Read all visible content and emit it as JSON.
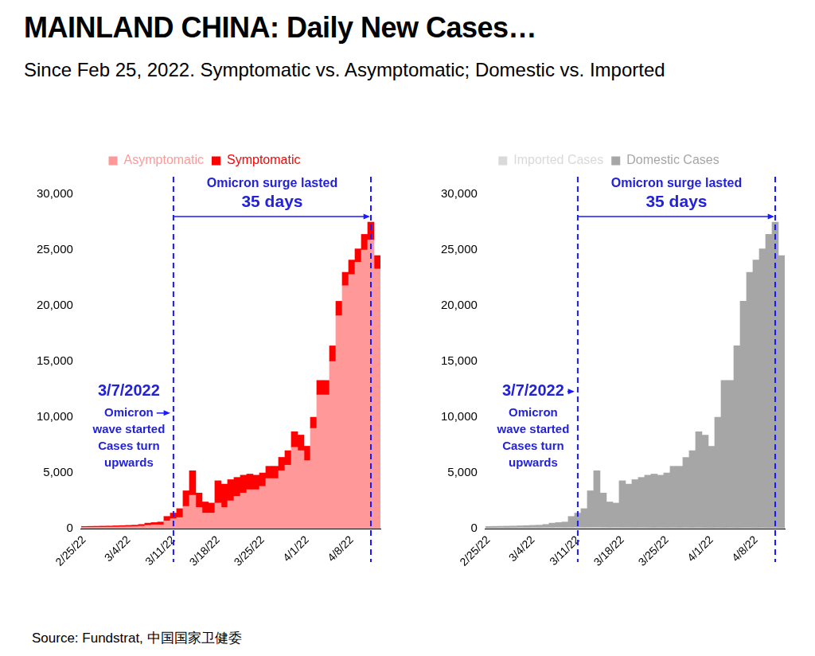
{
  "title": "MAINLAND CHINA: Daily New Cases…",
  "subtitle": "Since Feb 25, 2022. Symptomatic vs. Asymptomatic; Domestic vs. Imported",
  "source": "Source: Fundstrat, 中国国家卫健委",
  "chart_data": [
    {
      "type": "bar",
      "stacked": true,
      "grid": false,
      "legend": "top",
      "categories": [
        "2/25/22",
        null,
        null,
        null,
        null,
        null,
        null,
        "3/4/22",
        null,
        null,
        null,
        null,
        null,
        null,
        "3/11/22",
        null,
        null,
        null,
        null,
        null,
        null,
        "3/18/22",
        null,
        null,
        null,
        null,
        null,
        null,
        "3/25/22",
        null,
        null,
        null,
        null,
        null,
        null,
        "4/1/22",
        null,
        null,
        null,
        null,
        null,
        null,
        "4/8/22",
        null,
        null,
        null,
        null
      ],
      "series": [
        {
          "name": "Asymptomatic",
          "color": "#ff9999",
          "values": [
            120,
            120,
            130,
            130,
            140,
            150,
            170,
            180,
            200,
            230,
            300,
            350,
            350,
            700,
            900,
            1000,
            2000,
            3000,
            1900,
            1400,
            1400,
            2300,
            1900,
            2500,
            2900,
            3200,
            3500,
            3500,
            3800,
            4500,
            4500,
            5200,
            5700,
            7300,
            7000,
            6100,
            9000,
            12000,
            12000,
            15000,
            19100,
            21800,
            22800,
            23900,
            25000,
            25900,
            23300
          ]
        },
        {
          "name": "Symptomatic",
          "color": "#ff0000",
          "values": [
            80,
            90,
            90,
            100,
            100,
            110,
            110,
            120,
            120,
            150,
            200,
            200,
            250,
            400,
            500,
            800,
            1400,
            2200,
            1300,
            1000,
            900,
            2000,
            2100,
            1900,
            1700,
            1600,
            1400,
            1300,
            1200,
            1100,
            1100,
            1200,
            1300,
            1400,
            1400,
            1300,
            1000,
            1300,
            1300,
            1400,
            1300,
            1200,
            1300,
            1200,
            1400,
            1600,
            1200
          ]
        }
      ],
      "ylim": [
        0,
        30000
      ],
      "yticks": [
        0,
        {
          "value": 5000,
          "label": "5,000"
        },
        {
          "value": 10000,
          "label": "10,000"
        },
        {
          "value": 15000,
          "label": "15,000"
        },
        {
          "value": 20000,
          "label": "20,000"
        },
        {
          "value": 25000,
          "label": "25,000"
        },
        {
          "value": 30000,
          "label": "30,000"
        }
      ],
      "annotations": {
        "surge_label": [
          "Omicron surge lasted",
          "35 days"
        ],
        "start_label": [
          "3/7/2022",
          "Omicron",
          "wave started",
          "Cases turn",
          "upwards"
        ],
        "start_x": "3/11/22"
      }
    },
    {
      "type": "bar",
      "stacked": true,
      "grid": false,
      "legend": "top",
      "categories": [
        "2/25/22",
        null,
        null,
        null,
        null,
        null,
        null,
        "3/4/22",
        null,
        null,
        null,
        null,
        null,
        null,
        "3/11/22",
        null,
        null,
        null,
        null,
        null,
        null,
        "3/18/22",
        null,
        null,
        null,
        null,
        null,
        null,
        "3/25/22",
        null,
        null,
        null,
        null,
        null,
        null,
        "4/1/22",
        null,
        null,
        null,
        null,
        null,
        null,
        "4/8/22",
        null,
        null,
        null,
        null
      ],
      "series": [
        {
          "name": "Imported Cases",
          "color": "#d9d9d9",
          "values": [
            60,
            60,
            70,
            60,
            70,
            80,
            70,
            80,
            70,
            80,
            80,
            90,
            80,
            90,
            100,
            90,
            100,
            100,
            90,
            80,
            90,
            80,
            80,
            70,
            80,
            70,
            60,
            70,
            60,
            70,
            60,
            70,
            60,
            70,
            60,
            50,
            60,
            50,
            60,
            50,
            60,
            60,
            50,
            60,
            50,
            60,
            50
          ]
        },
        {
          "name": "Domestic Cases",
          "color": "#a6a6a6",
          "values": [
            140,
            150,
            150,
            170,
            170,
            180,
            210,
            220,
            250,
            300,
            420,
            460,
            520,
            1010,
            1300,
            1710,
            3300,
            5100,
            3110,
            2320,
            2210,
            4220,
            3920,
            4330,
            4520,
            4730,
            4840,
            4730,
            4940,
            5530,
            5540,
            6330,
            6940,
            8630,
            8340,
            7350,
            9940,
            13250,
            13240,
            16350,
            20340,
            22940,
            24050,
            25040,
            26350,
            27440,
            24450
          ]
        }
      ],
      "ylim": [
        0,
        30000
      ],
      "yticks": [
        0,
        {
          "value": 5000,
          "label": "5,000"
        },
        {
          "value": 10000,
          "label": "10,000"
        },
        {
          "value": 15000,
          "label": "15,000"
        },
        {
          "value": 20000,
          "label": "20,000"
        },
        {
          "value": 25000,
          "label": "25,000"
        },
        {
          "value": 30000,
          "label": "30,000"
        }
      ],
      "annotations": {
        "surge_label": [
          "Omicron surge lasted",
          "35 days"
        ],
        "start_label": [
          "3/7/2022",
          "Omicron",
          "wave started",
          "Cases turn",
          "upwards"
        ],
        "start_x": "3/11/22"
      }
    }
  ]
}
